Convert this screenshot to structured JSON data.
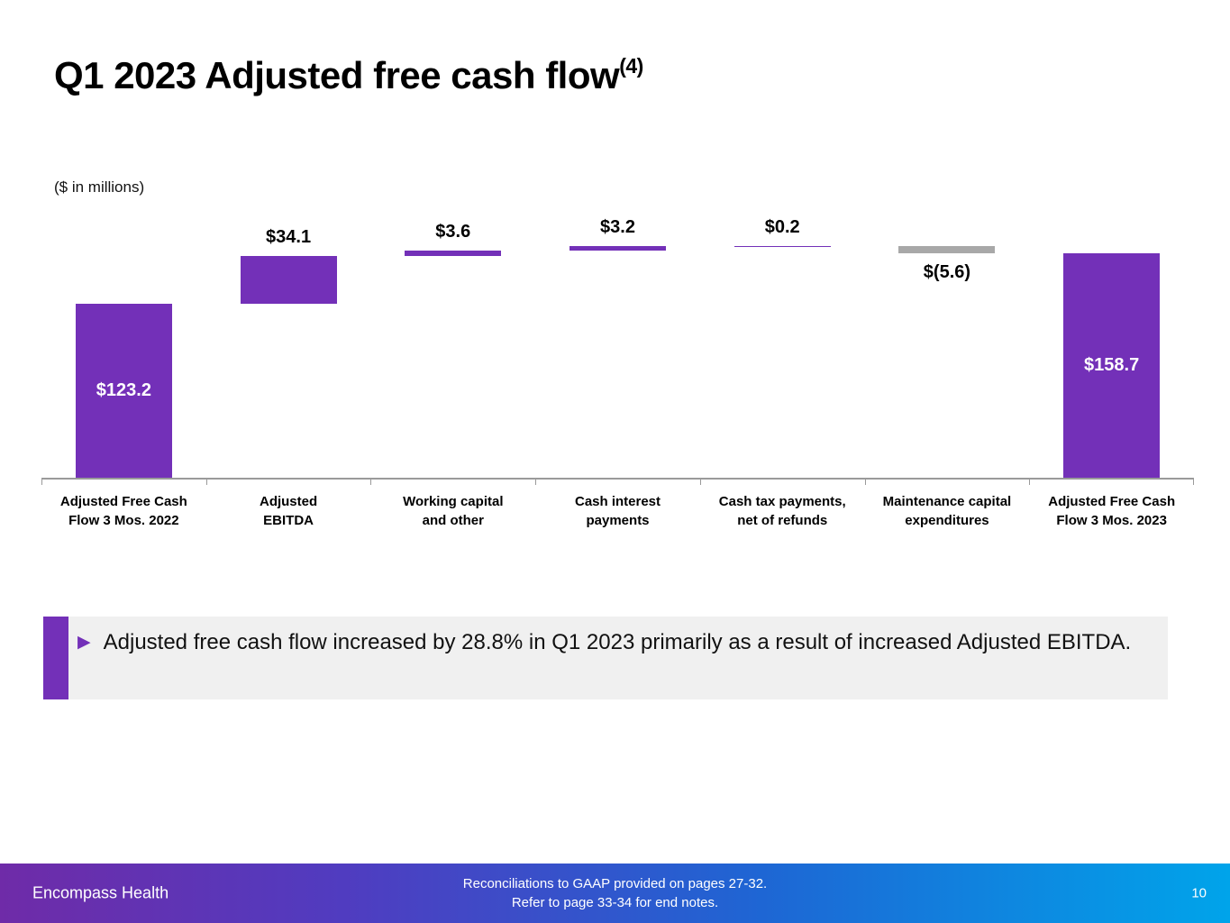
{
  "slide": {
    "title": "Q1 2023 Adjusted free cash flow",
    "title_superscript": "(4)",
    "units_label": "($ in millions)"
  },
  "chart_data": {
    "type": "bar",
    "subtype": "waterfall",
    "title": "Q1 2023 Adjusted free cash flow",
    "units": "$ in millions",
    "categories": [
      "Adjusted Free Cash Flow 3 Mos. 2022",
      "Adjusted EBITDA",
      "Working capital and other",
      "Cash interest payments",
      "Cash tax payments, net of refunds",
      "Maintenance capital expenditures",
      "Adjusted Free Cash Flow 3 Mos. 2023"
    ],
    "category_label_lines": [
      [
        "Adjusted Free Cash",
        "Flow 3 Mos. 2022"
      ],
      [
        "Adjusted",
        "EBITDA"
      ],
      [
        "Working capital",
        "and other"
      ],
      [
        "Cash interest",
        "payments"
      ],
      [
        "Cash tax payments,",
        "net of refunds"
      ],
      [
        "Maintenance capital",
        "expenditures"
      ],
      [
        "Adjusted Free Cash",
        "Flow 3 Mos. 2023"
      ]
    ],
    "values": [
      123.2,
      34.1,
      3.6,
      3.2,
      0.2,
      -5.6,
      158.7
    ],
    "labels": [
      "$123.2",
      "$34.1",
      "$3.6",
      "$3.2",
      "$0.2",
      "$(5.6)",
      "$158.7"
    ],
    "bar_types": [
      "total",
      "delta",
      "delta",
      "delta",
      "delta",
      "delta",
      "total"
    ],
    "label_positions": [
      "inside",
      "above",
      "above",
      "above",
      "above",
      "below",
      "inside"
    ],
    "ylim": [
      0,
      170
    ],
    "grid": false,
    "legend": false,
    "colors": {
      "positive": "#7330B8",
      "negative": "#A8A8A8",
      "axis": "#9A9A9A"
    }
  },
  "callout": {
    "text": "Adjusted free cash flow increased by 28.8% in Q1 2023 primarily as a result of increased Adjusted EBITDA."
  },
  "footer": {
    "brand": "Encompass Health",
    "note_line1": "Reconciliations to GAAP provided on pages 27-32.",
    "note_line2": "Refer to page 33-34 for end notes.",
    "page_number": "10"
  }
}
